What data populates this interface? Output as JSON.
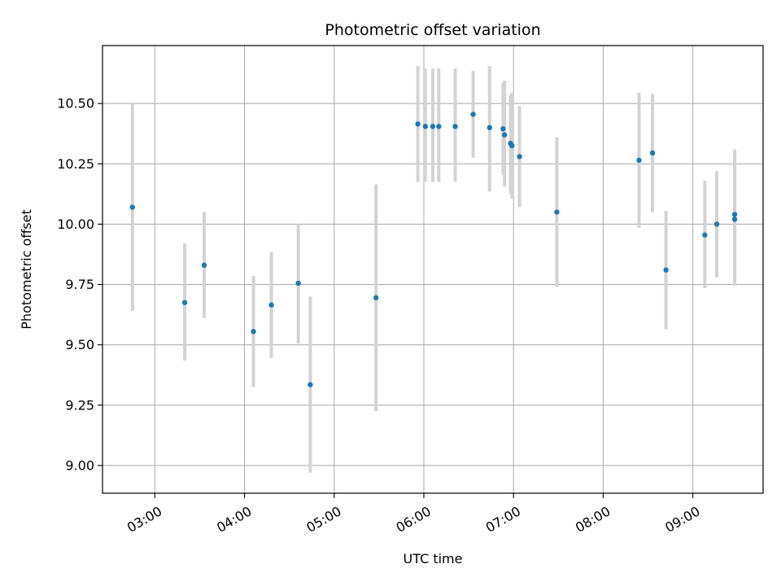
{
  "chart_data": {
    "type": "scatter",
    "title": "Photometric offset variation",
    "xlabel": "UTC time",
    "ylabel": "Photometric offset",
    "xlim": [
      "02:25",
      "09:47"
    ],
    "ylim": [
      8.885,
      10.74
    ],
    "x_ticks": [
      "03:00",
      "04:00",
      "05:00",
      "06:00",
      "07:00",
      "08:00",
      "09:00"
    ],
    "y_ticks": [
      "9.00",
      "9.25",
      "9.50",
      "9.75",
      "10.00",
      "10.25",
      "10.50"
    ],
    "grid": true,
    "colors": {
      "point": "#1f77b4",
      "errorbar": "#d3d3d3",
      "grid": "#b0b0b0"
    },
    "points": [
      {
        "x": "02:45",
        "y": 10.07,
        "low": 9.64,
        "high": 10.5
      },
      {
        "x": "03:20",
        "y": 9.675,
        "low": 9.435,
        "high": 9.92
      },
      {
        "x": "03:33",
        "y": 9.83,
        "low": 9.61,
        "high": 10.05
      },
      {
        "x": "04:06",
        "y": 9.555,
        "low": 9.325,
        "high": 9.785
      },
      {
        "x": "04:18",
        "y": 9.665,
        "low": 9.445,
        "high": 9.885
      },
      {
        "x": "04:36",
        "y": 9.755,
        "low": 9.505,
        "high": 10.0
      },
      {
        "x": "04:44",
        "y": 9.335,
        "low": 8.97,
        "high": 9.7
      },
      {
        "x": "05:28",
        "y": 9.695,
        "low": 9.225,
        "high": 10.165
      },
      {
        "x": "05:56",
        "y": 10.415,
        "low": 10.175,
        "high": 10.655
      },
      {
        "x": "06:01",
        "y": 10.405,
        "low": 10.175,
        "high": 10.645
      },
      {
        "x": "06:06",
        "y": 10.405,
        "low": 10.175,
        "high": 10.645
      },
      {
        "x": "06:10",
        "y": 10.405,
        "low": 10.175,
        "high": 10.645
      },
      {
        "x": "06:21",
        "y": 10.405,
        "low": 10.175,
        "high": 10.645
      },
      {
        "x": "06:33",
        "y": 10.455,
        "low": 10.275,
        "high": 10.635
      },
      {
        "x": "06:44",
        "y": 10.4,
        "low": 10.135,
        "high": 10.655
      },
      {
        "x": "06:53",
        "y": 10.395,
        "low": 10.205,
        "high": 10.585
      },
      {
        "x": "06:54",
        "y": 10.37,
        "low": 10.155,
        "high": 10.595
      },
      {
        "x": "06:58",
        "y": 10.335,
        "low": 10.125,
        "high": 10.535
      },
      {
        "x": "06:59",
        "y": 10.325,
        "low": 10.105,
        "high": 10.545
      },
      {
        "x": "07:04",
        "y": 10.28,
        "low": 10.07,
        "high": 10.49
      },
      {
        "x": "07:29",
        "y": 10.05,
        "low": 9.74,
        "high": 10.36
      },
      {
        "x": "08:24",
        "y": 10.265,
        "low": 9.985,
        "high": 10.545
      },
      {
        "x": "08:33",
        "y": 10.295,
        "low": 10.05,
        "high": 10.54
      },
      {
        "x": "08:42",
        "y": 9.81,
        "low": 9.565,
        "high": 10.055
      },
      {
        "x": "09:08",
        "y": 9.955,
        "low": 9.735,
        "high": 10.18
      },
      {
        "x": "09:16",
        "y": 10.0,
        "low": 9.78,
        "high": 10.22
      },
      {
        "x": "09:28",
        "y": 10.04,
        "low": 9.775,
        "high": 10.305
      },
      {
        "x": "09:28",
        "y": 10.02,
        "low": 9.745,
        "high": 10.31
      }
    ]
  }
}
